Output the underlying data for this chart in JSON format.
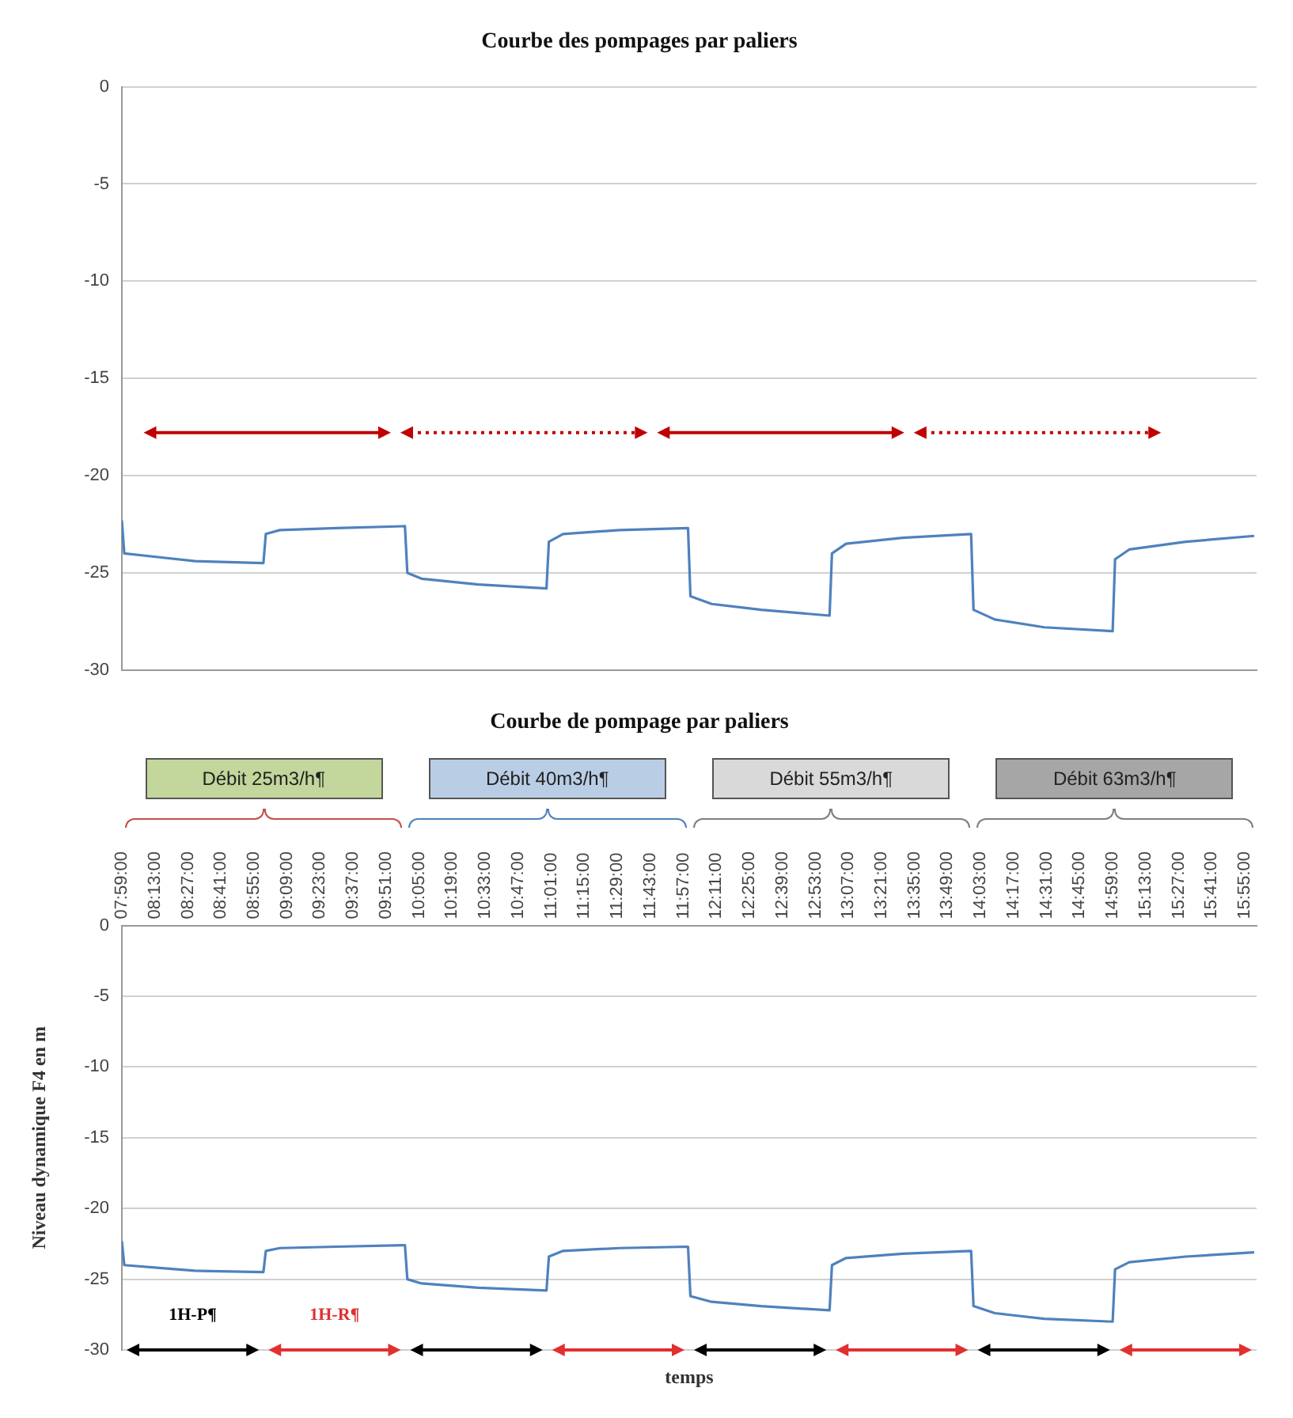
{
  "chart_data": [
    {
      "type": "line",
      "title": "Courbe des pompages par paliers",
      "x": [
        7.983,
        8.0,
        8.25,
        8.5,
        8.983,
        9.0,
        9.1,
        9.5,
        9.983,
        10.0,
        10.1,
        10.5,
        10.983,
        11.0,
        11.1,
        11.5,
        11.983,
        12.0,
        12.15,
        12.5,
        12.983,
        13.0,
        13.1,
        13.5,
        13.983,
        14.0,
        14.15,
        14.5,
        14.983,
        15.0,
        15.1,
        15.5,
        15.983
      ],
      "series": [
        {
          "color": "#4f81bd",
          "values": [
            -22.3,
            -24.0,
            -24.2,
            -24.4,
            -24.5,
            -23.0,
            -22.8,
            -22.7,
            -22.6,
            -25.0,
            -25.3,
            -25.6,
            -25.8,
            -23.4,
            -23.0,
            -22.8,
            -22.7,
            -26.2,
            -26.6,
            -26.9,
            -27.2,
            -24.0,
            -23.5,
            -23.2,
            -23.0,
            -26.9,
            -27.4,
            -27.8,
            -28.0,
            -24.3,
            -23.8,
            -23.4,
            -23.1
          ]
        }
      ],
      "xlim": [
        7.983,
        16.0
      ],
      "ylim": [
        -30,
        0
      ],
      "yticks": [
        0,
        -5,
        -10,
        -15,
        -20,
        -25,
        -30
      ],
      "grid": "y",
      "tick_labels": "y",
      "marker": "none",
      "line_style": "solid"
    },
    {
      "type": "line",
      "title": "Courbe de pompage par paliers",
      "xlabel": "temps",
      "ylabel": "Niveau dynamique F4 en m",
      "x": [
        7.983,
        8.0,
        8.25,
        8.5,
        8.983,
        9.0,
        9.1,
        9.5,
        9.983,
        10.0,
        10.1,
        10.5,
        10.983,
        11.0,
        11.1,
        11.5,
        11.983,
        12.0,
        12.15,
        12.5,
        12.983,
        13.0,
        13.1,
        13.5,
        13.983,
        14.0,
        14.15,
        14.5,
        14.983,
        15.0,
        15.1,
        15.5,
        15.983
      ],
      "series": [
        {
          "color": "#4f81bd",
          "values": [
            -22.3,
            -24.0,
            -24.2,
            -24.4,
            -24.5,
            -23.0,
            -22.8,
            -22.7,
            -22.6,
            -25.0,
            -25.3,
            -25.6,
            -25.8,
            -23.4,
            -23.0,
            -22.8,
            -22.7,
            -26.2,
            -26.6,
            -26.9,
            -27.2,
            -24.0,
            -23.5,
            -23.2,
            -23.0,
            -26.9,
            -27.4,
            -27.8,
            -28.0,
            -24.3,
            -23.8,
            -23.4,
            -23.1
          ]
        }
      ],
      "xlim": [
        7.983,
        16.0
      ],
      "xticks": [
        {
          "value": 7.9833,
          "label": "07:59:00"
        },
        {
          "value": 8.2167,
          "label": "08:13:00"
        },
        {
          "value": 8.45,
          "label": "08:27:00"
        },
        {
          "value": 8.6833,
          "label": "08:41:00"
        },
        {
          "value": 8.9167,
          "label": "08:55:00"
        },
        {
          "value": 9.15,
          "label": "09:09:00"
        },
        {
          "value": 9.3833,
          "label": "09:23:00"
        },
        {
          "value": 9.6167,
          "label": "09:37:00"
        },
        {
          "value": 9.85,
          "label": "09:51:00"
        },
        {
          "value": 10.0833,
          "label": "10:05:00"
        },
        {
          "value": 10.3167,
          "label": "10:19:00"
        },
        {
          "value": 10.55,
          "label": "10:33:00"
        },
        {
          "value": 10.7833,
          "label": "10:47:00"
        },
        {
          "value": 11.0167,
          "label": "11:01:00"
        },
        {
          "value": 11.25,
          "label": "11:15:00"
        },
        {
          "value": 11.4833,
          "label": "11:29:00"
        },
        {
          "value": 11.7167,
          "label": "11:43:00"
        },
        {
          "value": 11.95,
          "label": "11:57:00"
        },
        {
          "value": 12.1833,
          "label": "12:11:00"
        },
        {
          "value": 12.4167,
          "label": "12:25:00"
        },
        {
          "value": 12.65,
          "label": "12:39:00"
        },
        {
          "value": 12.8833,
          "label": "12:53:00"
        },
        {
          "value": 13.1167,
          "label": "13:07:00"
        },
        {
          "value": 13.35,
          "label": "13:21:00"
        },
        {
          "value": 13.5833,
          "label": "13:35:00"
        },
        {
          "value": 13.8167,
          "label": "13:49:00"
        },
        {
          "value": 14.05,
          "label": "14:03:00"
        },
        {
          "value": 14.2833,
          "label": "14:17:00"
        },
        {
          "value": 14.5167,
          "label": "14:31:00"
        },
        {
          "value": 14.75,
          "label": "14:45:00"
        },
        {
          "value": 14.9833,
          "label": "14:59:00"
        },
        {
          "value": 15.2167,
          "label": "15:13:00"
        },
        {
          "value": 15.45,
          "label": "15:27:00"
        },
        {
          "value": 15.6833,
          "label": "15:41:00"
        },
        {
          "value": 15.9167,
          "label": "15:55:00"
        }
      ],
      "ylim": [
        -30,
        0
      ],
      "yticks": [
        0,
        -5,
        -10,
        -15,
        -20,
        -25,
        -30
      ],
      "grid": "y",
      "marker": "none",
      "line_style": "solid",
      "annotations": [
        "Débit 25m3/h¶",
        "Débit 40m3/h¶",
        "Débit 55m3/h¶",
        "Débit 63m3/h¶",
        "1H-P¶",
        "1H-R¶"
      ]
    }
  ]
}
